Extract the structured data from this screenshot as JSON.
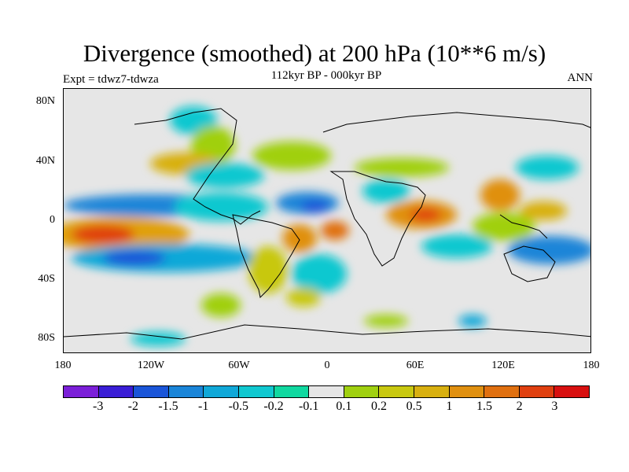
{
  "header": {
    "title": "Divergence (smoothed) at 200 hPa (10**6 m/s)",
    "center_subtitle": "112kyr BP - 000kyr BP",
    "left_subtitle": "Expt = tdwz7-tdwza",
    "right_subtitle": "ANN"
  },
  "axes": {
    "y_ticks": [
      "80N",
      "40N",
      "0",
      "40S",
      "80S"
    ],
    "x_ticks": [
      "180",
      "120W",
      "60W",
      "0",
      "60E",
      "120E",
      "180"
    ]
  },
  "colorbar": {
    "colors": [
      "#7b1fd8",
      "#3a1ed6",
      "#1a55d8",
      "#1a85d8",
      "#10a8d8",
      "#10c8d0",
      "#10d8a0",
      "#e6e6e6",
      "#a0d010",
      "#c8c810",
      "#d8b010",
      "#e09010",
      "#e07010",
      "#e04010",
      "#d81010"
    ],
    "labels": [
      "-3",
      "-2",
      "-1.5",
      "-1",
      "-0.5",
      "-0.2",
      "-0.1",
      "0.1",
      "0.2",
      "0.5",
      "1",
      "1.5",
      "2",
      "3"
    ]
  }
}
